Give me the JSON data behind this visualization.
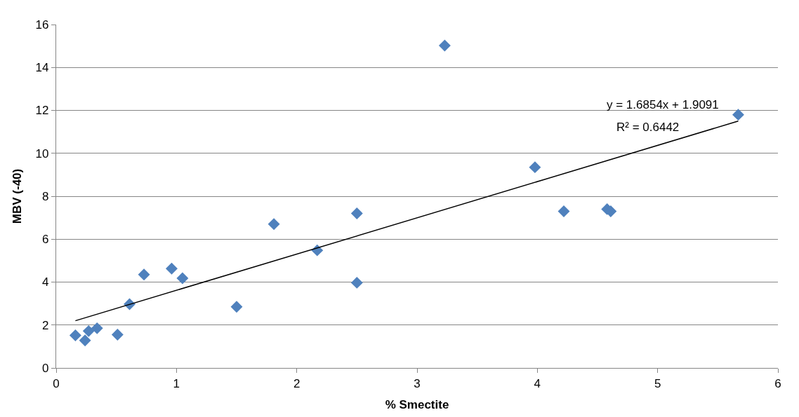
{
  "chart_data": {
    "type": "scatter",
    "xlabel": "% Smectite",
    "ylabel": "MBV (-40)",
    "xlim": [
      0,
      6
    ],
    "xticks": [
      0,
      1,
      2,
      3,
      4,
      5,
      6
    ],
    "ylim": [
      0,
      16
    ],
    "yticks": [
      0,
      2,
      4,
      6,
      8,
      10,
      12,
      14,
      16
    ],
    "grid": "y",
    "marker": "diamond",
    "series": [
      {
        "color": "#4f81bd",
        "x": [
          0.16,
          0.24,
          0.27,
          0.34,
          0.51,
          0.61,
          0.73,
          0.96,
          1.05,
          1.5,
          1.81,
          2.17,
          2.5,
          2.5,
          3.23,
          3.98,
          4.22,
          4.58,
          4.61,
          5.67
        ],
        "values": [
          1.52,
          1.28,
          1.72,
          1.85,
          1.55,
          2.97,
          4.35,
          4.63,
          4.18,
          2.85,
          6.7,
          5.48,
          7.2,
          3.97,
          15.02,
          9.35,
          7.3,
          7.4,
          7.3,
          11.8
        ]
      },
      {
        "type": "line",
        "marker": "none",
        "color": "#000000",
        "x": [
          0.16,
          5.67
        ],
        "values": [
          2.2,
          11.5
        ]
      }
    ],
    "annotations": [
      "y = 1.6854x + 1.9091",
      "R² = 0.6442"
    ]
  }
}
